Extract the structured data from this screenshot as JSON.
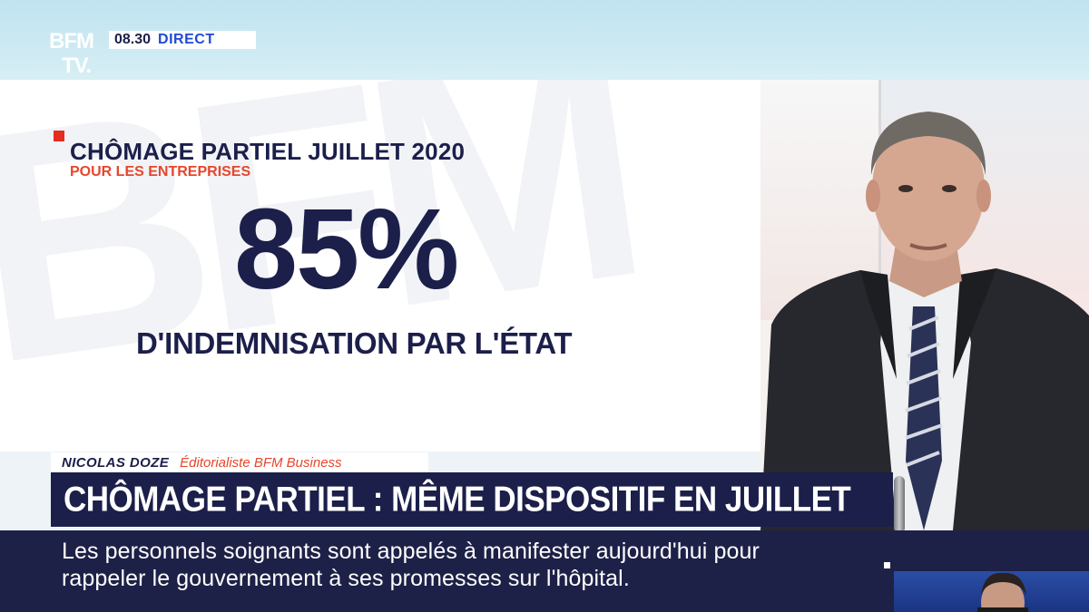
{
  "channel": {
    "logo_line1": "BFM",
    "logo_line2": "TV.",
    "time": "08.30",
    "live_label": "DIRECT"
  },
  "graphic": {
    "title": "CHÔMAGE PARTIEL JUILLET 2020",
    "subtitle": "POUR LES ENTREPRISES",
    "big_value": "85%",
    "caption": "D'INDEMNISATION PAR L'ÉTAT",
    "watermark": "BFM"
  },
  "lower_third": {
    "name": "NICOLAS DOZE",
    "role": "Éditorialiste BFM Business",
    "headline": "CHÔMAGE PARTIEL : MÊME DISPOSITIF EN JUILLET"
  },
  "ticker": {
    "line1": "Les personnels soignants sont appelés à manifester aujourd'hui pour",
    "line2": "rappeler le gouvernement à ses promesses sur l'hôpital."
  },
  "colors": {
    "navy": "#1b1f4a",
    "accent_red": "#e42d1e",
    "orange": "#e6462c",
    "live_blue": "#1f4bd1"
  }
}
